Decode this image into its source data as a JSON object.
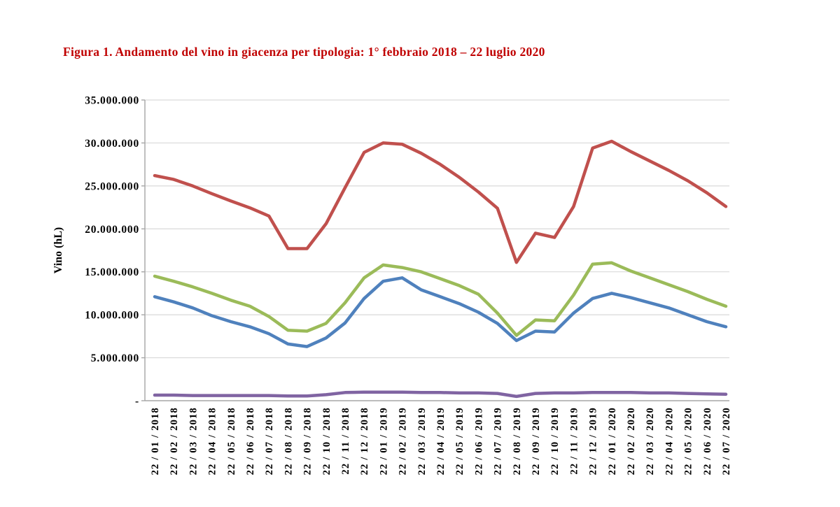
{
  "chart_data": {
    "type": "line",
    "title": "Figura 1. Andamento del vino in giacenza per tipologia: 1° febbraio 2018 – 22 luglio 2020",
    "title_color": "#C00000",
    "xlabel": "",
    "ylabel": "Vino (hL)",
    "ylim": [
      0,
      35000000
    ],
    "ytick_interval": 5000000,
    "ytick_labels": [
      "35.000.000",
      "30.000.000",
      "25.000.000",
      "20.000.000",
      "15.000.000",
      "10.000.000",
      "5.000.000",
      "-"
    ],
    "grid": true,
    "gridline_color": "#D9D9D9",
    "axis_color": "#A6A6A6",
    "legend": "none",
    "xtick_rotation": 90,
    "categories": [
      "22/01/2018",
      "22/02/2018",
      "22/03/2018",
      "22/04/2018",
      "22/05/2018",
      "22/06/2018",
      "22/07/2018",
      "22/08/2018",
      "22/09/2018",
      "22/10/2018",
      "22/11/2018",
      "22/12/2018",
      "22/01/2019",
      "22/02/2019",
      "22/03/2019",
      "22/04/2019",
      "22/05/2019",
      "22/06/2019",
      "22/07/2019",
      "22/08/2019",
      "22/09/2019",
      "22/10/2019",
      "22/11/2019",
      "22/12/2019",
      "22/01/2020",
      "22/02/2020",
      "22/03/2020",
      "22/04/2020",
      "22/05/2020",
      "22/06/2020",
      "22/07/2020"
    ],
    "series": [
      {
        "name": "blue-line",
        "color": "#4F81BD",
        "values": [
          12100000,
          11500000,
          10800000,
          9900000,
          9200000,
          8600000,
          7800000,
          6600000,
          6300000,
          7300000,
          9050000,
          11900000,
          13900000,
          14300000,
          12900000,
          12100000,
          11300000,
          10300000,
          9000000,
          7000000,
          8100000,
          8000000,
          10200000,
          11900000,
          12500000,
          12000000,
          11400000,
          10800000,
          10000000,
          9200000,
          8600000
        ]
      },
      {
        "name": "red-line",
        "color": "#C0504D",
        "values": [
          26200000,
          25750000,
          25000000,
          24100000,
          23250000,
          22450000,
          21500000,
          17700000,
          17700000,
          20600000,
          24800000,
          28900000,
          30000000,
          29850000,
          28800000,
          27500000,
          26000000,
          24300000,
          22400000,
          16100000,
          19500000,
          19000000,
          22600000,
          29400000,
          30200000,
          29000000,
          27900000,
          26800000,
          25600000,
          24200000,
          22600000
        ]
      },
      {
        "name": "green-line",
        "color": "#9BBB59",
        "values": [
          14500000,
          13900000,
          13250000,
          12500000,
          11700000,
          11000000,
          9800000,
          8200000,
          8100000,
          9000000,
          11400000,
          14300000,
          15800000,
          15500000,
          15000000,
          14200000,
          13400000,
          12400000,
          10200000,
          7600000,
          9400000,
          9300000,
          12300000,
          15900000,
          16050000,
          15100000,
          14300000,
          13500000,
          12700000,
          11800000,
          11000000
        ]
      },
      {
        "name": "purple-line",
        "color": "#8064A2",
        "values": [
          650000,
          650000,
          600000,
          600000,
          600000,
          600000,
          600000,
          550000,
          550000,
          700000,
          950000,
          1000000,
          1000000,
          1000000,
          950000,
          950000,
          900000,
          900000,
          850000,
          500000,
          850000,
          900000,
          900000,
          950000,
          950000,
          950000,
          900000,
          900000,
          850000,
          800000,
          750000
        ]
      }
    ]
  }
}
